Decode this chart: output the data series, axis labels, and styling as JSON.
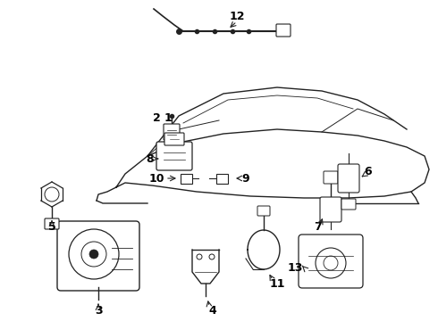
{
  "background_color": "#ffffff",
  "line_color": "#222222",
  "text_color": "#000000",
  "figsize": [
    4.9,
    3.6
  ],
  "dpi": 100
}
